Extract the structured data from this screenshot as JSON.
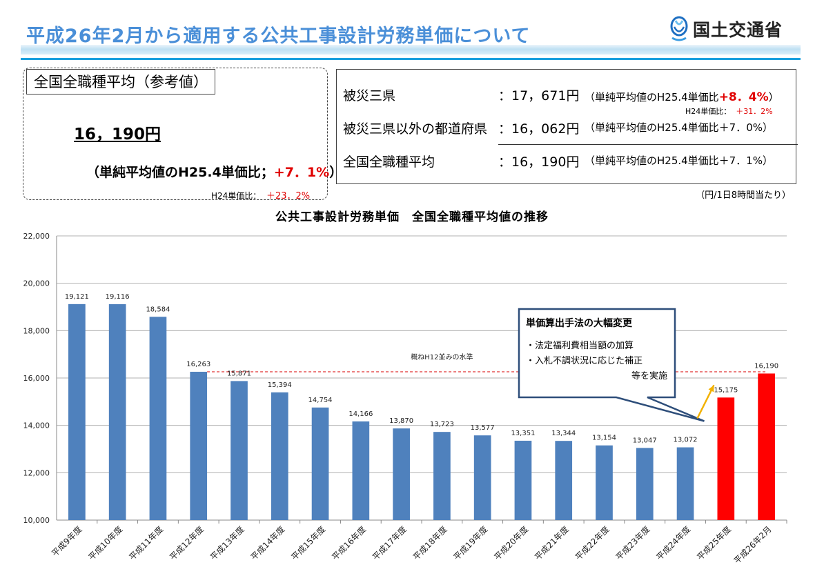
{
  "header": {
    "title": "平成26年2月から適用する公共工事設計労務単価について",
    "ministry": "国土交通省"
  },
  "reference": {
    "label": "全国全職種平均（参考値）",
    "value": "16，190円",
    "ratio_prefix": "（単純平均値のH25.4単価比；",
    "ratio_value": "+7．1%",
    "ratio_suffix": "）",
    "h24_prefix": "H24単価比：",
    "h24_value": "＋23．2%"
  },
  "summary": {
    "rows": [
      {
        "label": "被災三県",
        "value": "：17，671円",
        "note_prefix": "（単純平均値のH25.4単価比",
        "note_value": "+8．4%",
        "note_suffix": "）"
      },
      {
        "label": "被災三県以外の都道府県",
        "value": "：16，062円",
        "note": "（単純平均値のH25.4単価比＋7．0%）"
      },
      {
        "label": "全国全職種平均",
        "value": "：16，190円",
        "note": "（単純平均値のH25.4単価比＋7．1%）"
      }
    ],
    "h24_prefix": "H24単価比：",
    "h24_value": "＋31．2%",
    "unit_note": "（円/1日8時間当たり）"
  },
  "callout": {
    "title": "単価算出手法の大幅変更",
    "items": [
      "・法定福利費相当額の加算",
      "・入札不調状況に応じた補正",
      "等を実施"
    ]
  },
  "colors": {
    "normal_bar": "#4f81bd",
    "highlight_bar": "#ff0000",
    "reference_line": "#e03030",
    "arrow": "#f2b100",
    "title": "#4a8fd8"
  },
  "chart_data": {
    "type": "bar",
    "title": "公共工事設計労務単価　全国全職種平均値の推移",
    "categories": [
      "平成9年度",
      "平成10年度",
      "平成11年度",
      "平成12年度",
      "平成13年度",
      "平成14年度",
      "平成15年度",
      "平成16年度",
      "平成17年度",
      "平成18年度",
      "平成19年度",
      "平成20年度",
      "平成21年度",
      "平成22年度",
      "平成23年度",
      "平成24年度",
      "平成25年度",
      "平成26年2月"
    ],
    "values": [
      19121,
      19116,
      18584,
      16263,
      15871,
      15394,
      14754,
      14166,
      13870,
      13723,
      13577,
      13351,
      13344,
      13154,
      13047,
      13072,
      15175,
      16190
    ],
    "value_labels": [
      "19,121",
      "19,116",
      "18,584",
      "16,263",
      "15,871",
      "15,394",
      "14,754",
      "14,166",
      "13,870",
      "13,723",
      "13,577",
      "13,351",
      "13,344",
      "13,154",
      "13,047",
      "13,072",
      "15,175",
      "16,190"
    ],
    "highlight": [
      false,
      false,
      false,
      false,
      false,
      false,
      false,
      false,
      false,
      false,
      false,
      false,
      false,
      false,
      false,
      false,
      true,
      true
    ],
    "ylim": [
      10000,
      22000
    ],
    "yticks": [
      10000,
      12000,
      14000,
      16000,
      18000,
      20000,
      22000
    ],
    "ytick_labels": [
      "10,000",
      "12,000",
      "14,000",
      "16,000",
      "18,000",
      "20,000",
      "22,000"
    ],
    "grid": true,
    "reference_line": {
      "value": 16263,
      "label": "概ねH12並みの水準"
    }
  }
}
